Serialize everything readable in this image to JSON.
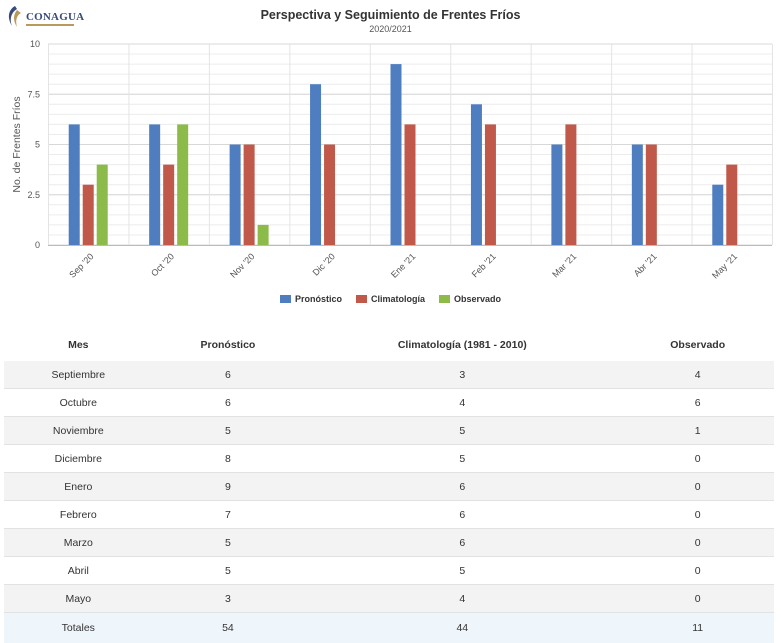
{
  "logo": {
    "text": "CONAGUA"
  },
  "chart_data": {
    "type": "bar",
    "title": "Perspectiva y Seguimiento de Frentes Fríos",
    "subtitle": "2020/2021",
    "ylabel": "No. de Frentes Fríos",
    "xlabel": "",
    "ylim": [
      0,
      10
    ],
    "yticks": [
      "0",
      "2.5",
      "5",
      "7.5",
      "10"
    ],
    "ytick_values": [
      0,
      2.5,
      5,
      7.5,
      10
    ],
    "categories": [
      "Sep '20",
      "Oct '20",
      "Nov '20",
      "Dic '20",
      "Ene '21",
      "Feb '21",
      "Mar '21",
      "Abr '21",
      "May '21"
    ],
    "series": [
      {
        "name": "Pronóstico",
        "color": "#4f7ec0",
        "values": [
          6,
          6,
          5,
          8,
          9,
          7,
          5,
          5,
          3
        ]
      },
      {
        "name": "Climatología",
        "color": "#c0594a",
        "values": [
          3,
          4,
          5,
          5,
          6,
          6,
          6,
          5,
          4
        ]
      },
      {
        "name": "Observado",
        "color": "#8dbb4a",
        "values": [
          4,
          6,
          1,
          0,
          0,
          0,
          0,
          0,
          0
        ]
      }
    ],
    "legend_position": "bottom"
  },
  "table": {
    "headers": [
      "Mes",
      "Pronóstico",
      "Climatología (1981 - 2010)",
      "Observado"
    ],
    "rows": [
      [
        "Septiembre",
        "6",
        "3",
        "4"
      ],
      [
        "Octubre",
        "6",
        "4",
        "6"
      ],
      [
        "Noviembre",
        "5",
        "5",
        "1"
      ],
      [
        "Diciembre",
        "8",
        "5",
        "0"
      ],
      [
        "Enero",
        "9",
        "6",
        "0"
      ],
      [
        "Febrero",
        "7",
        "6",
        "0"
      ],
      [
        "Marzo",
        "5",
        "6",
        "0"
      ],
      [
        "Abril",
        "5",
        "5",
        "0"
      ],
      [
        "Mayo",
        "3",
        "4",
        "0"
      ]
    ],
    "totals": [
      "Totales",
      "54",
      "44",
      "11"
    ]
  }
}
